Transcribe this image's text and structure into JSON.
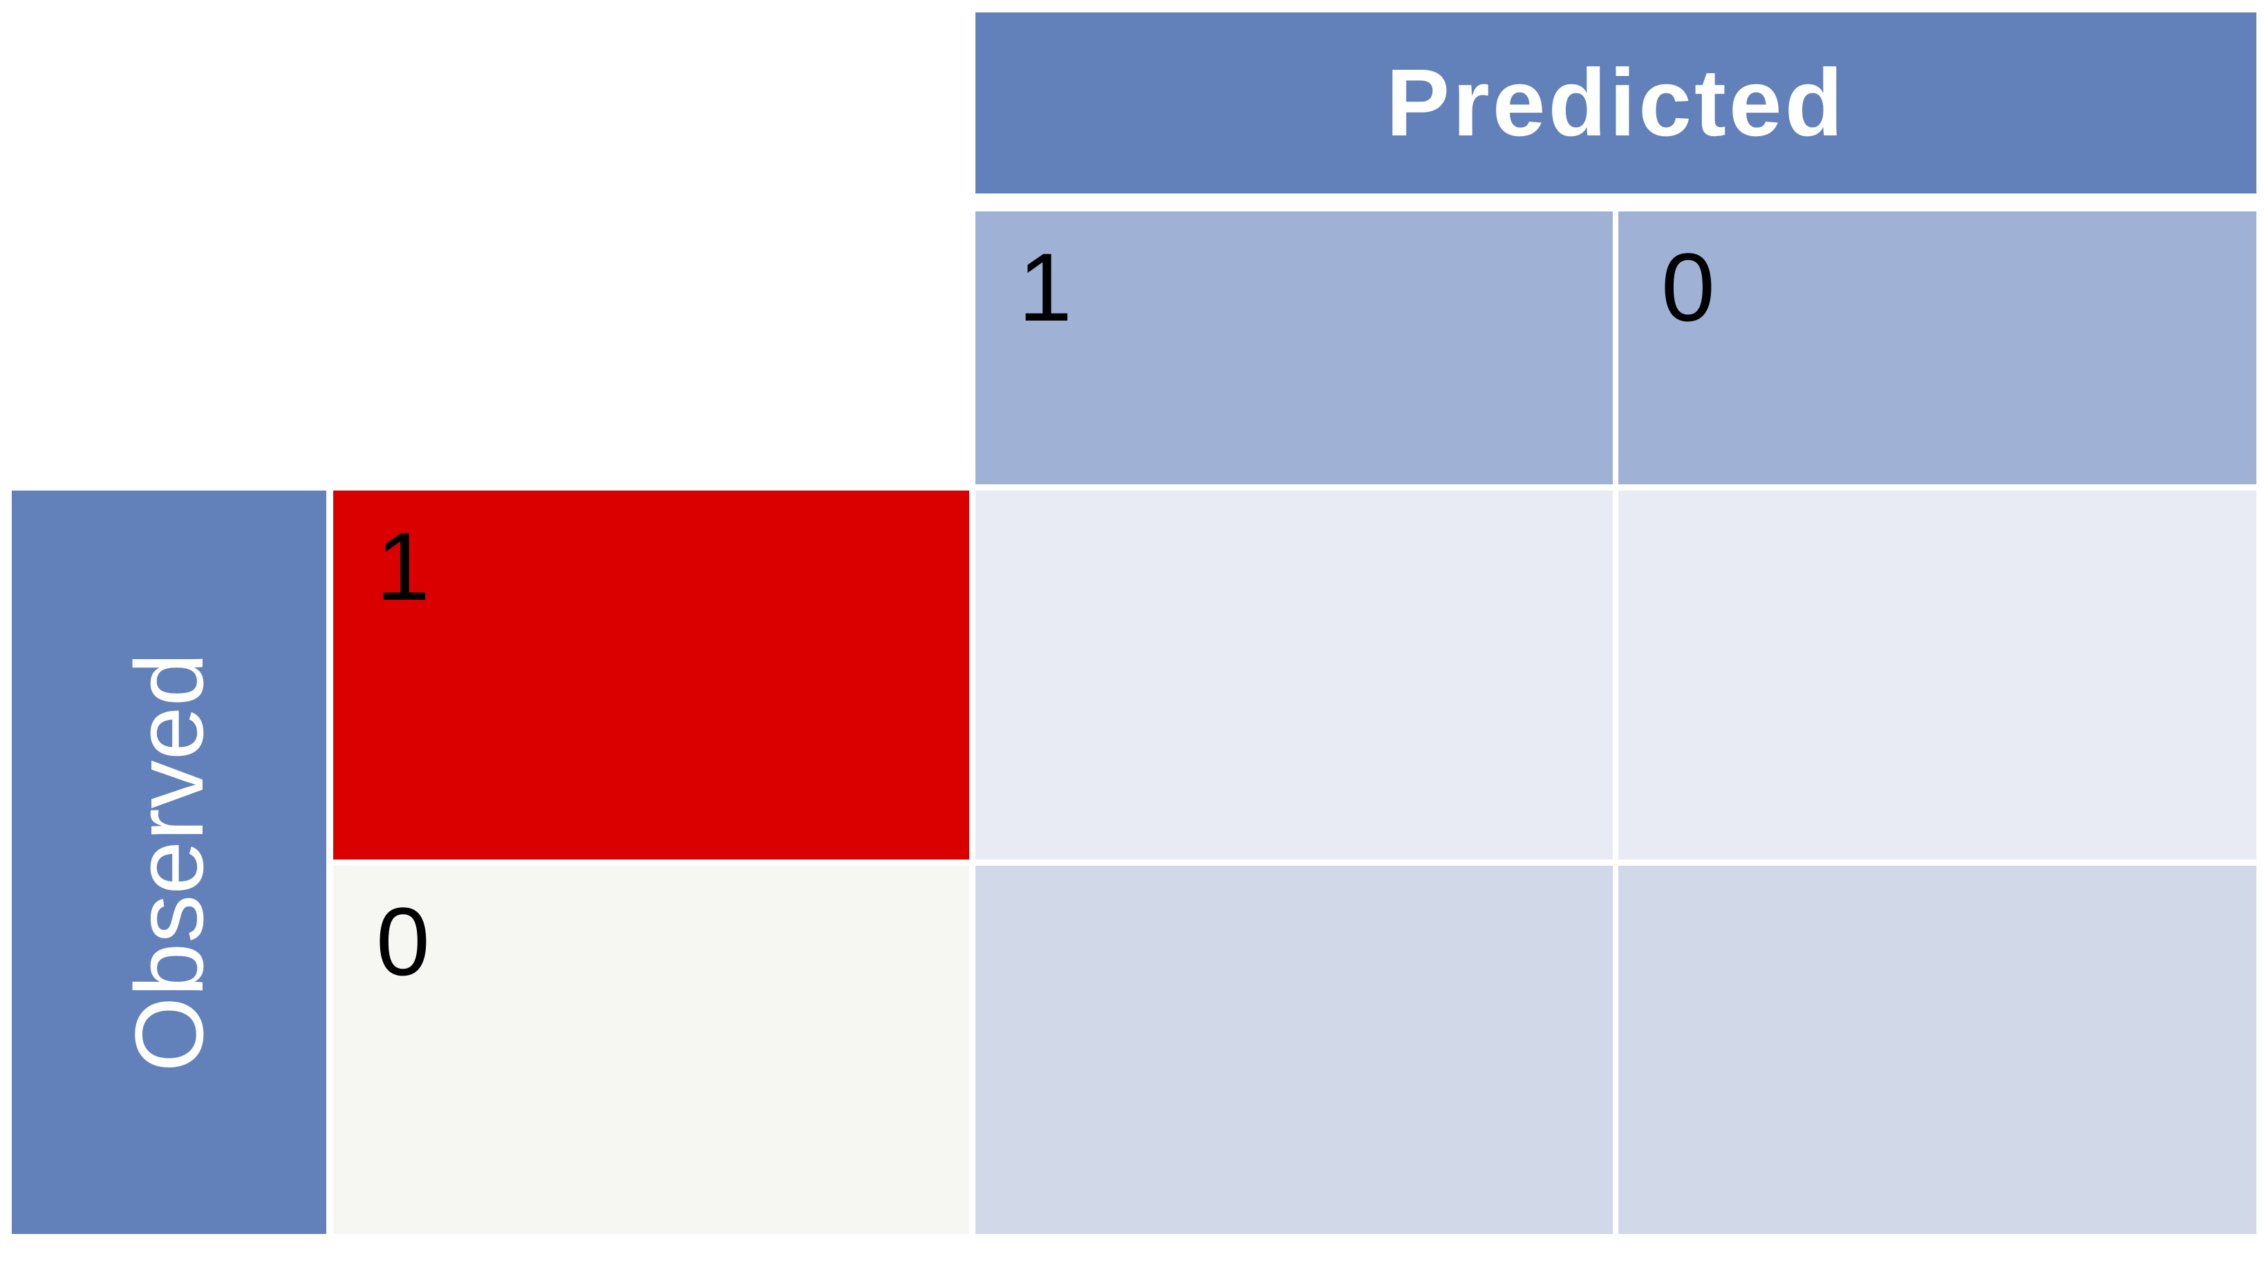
{
  "header_predicted": "Predicted",
  "header_observed": "Observed",
  "predicted_classes": [
    "1",
    "0"
  ],
  "observed_classes": [
    "1",
    "0"
  ],
  "colors": {
    "header": "#6280ba",
    "predicted_class_cell": "#9fb2d6",
    "highlight": "#da0000",
    "observed_class_0": "#f6f6f2",
    "matrix_row_1": "#e8ebf4",
    "matrix_row_0": "#d1d8e7"
  }
}
